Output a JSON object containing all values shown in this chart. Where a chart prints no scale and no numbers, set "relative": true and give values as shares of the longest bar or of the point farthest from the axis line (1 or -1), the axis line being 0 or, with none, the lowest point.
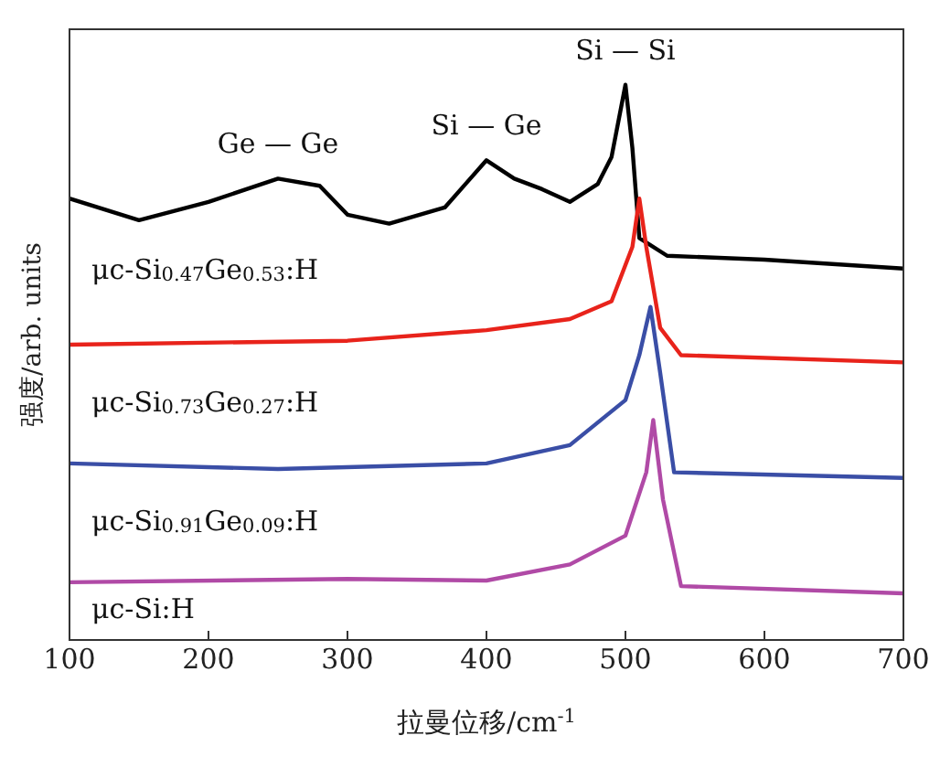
{
  "chart_data": {
    "type": "line",
    "relative": true,
    "xlabel": "拉曼位移/cm$^{-1}$",
    "ylabel": "强度/arb. units",
    "xlim": [
      100,
      700
    ],
    "xticks": [
      100,
      200,
      300,
      400,
      500,
      600,
      700
    ],
    "marker": "none",
    "annotations": [
      {
        "text": "Ge — Ge",
        "x": 250,
        "y": 0.831
      },
      {
        "text": "Si — Ge",
        "x": 400,
        "y": 0.864
      },
      {
        "text": "Si — Si",
        "x": 500,
        "y": 1
      }
    ],
    "series": [
      {
        "name": "μc-Si$_{0.47}$Ge$_{0.53}$:H",
        "color": "#000000",
        "x": [
          100,
          150,
          200,
          250,
          280,
          300,
          330,
          370,
          400,
          420,
          440,
          460,
          480,
          490,
          500,
          505,
          510,
          530,
          600,
          700
        ],
        "values": [
          0.795,
          0.756,
          0.789,
          0.831,
          0.818,
          0.766,
          0.75,
          0.779,
          0.864,
          0.831,
          0.812,
          0.789,
          0.821,
          0.87,
          1.0,
          0.886,
          0.724,
          0.692,
          0.685,
          0.669
        ]
      },
      {
        "name": "μc-Si$_{0.73}$Ge$_{0.27}$:H",
        "color": "#e8231b",
        "x": [
          100,
          300,
          400,
          460,
          490,
          505,
          510,
          515,
          525,
          540,
          700
        ],
        "values": [
          0.532,
          0.539,
          0.558,
          0.578,
          0.61,
          0.708,
          0.795,
          0.708,
          0.562,
          0.513,
          0.5
        ]
      },
      {
        "name": "μc-Si$_{0.91}$Ge$_{0.09}$:H",
        "color": "#3a4ea6",
        "x": [
          100,
          250,
          400,
          460,
          500,
          510,
          518,
          525,
          535,
          700
        ],
        "values": [
          0.318,
          0.308,
          0.318,
          0.351,
          0.432,
          0.513,
          0.6,
          0.481,
          0.302,
          0.292
        ]
      },
      {
        "name": "μc-Si:H",
        "color": "#b04aa6",
        "x": [
          100,
          300,
          400,
          460,
          500,
          515,
          520,
          527,
          540,
          700
        ],
        "values": [
          0.104,
          0.11,
          0.107,
          0.136,
          0.188,
          0.302,
          0.396,
          0.253,
          0.097,
          0.084
        ]
      }
    ]
  }
}
